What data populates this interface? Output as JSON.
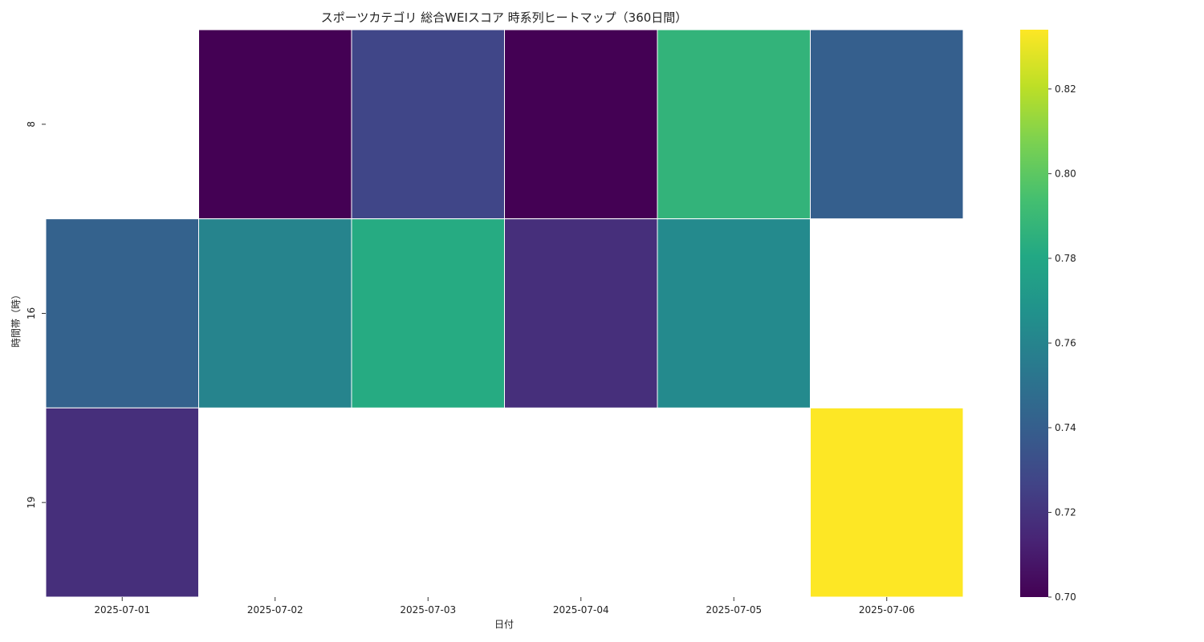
{
  "chart_data": {
    "type": "heatmap",
    "title": "スポーツカテゴリ 総合WEIスコア 時系列ヒートマップ（360日間）",
    "xlabel": "日付",
    "ylabel": "時間帯（時）",
    "x_categories": [
      "2025-07-01",
      "2025-07-02",
      "2025-07-03",
      "2025-07-04",
      "2025-07-05",
      "2025-07-06"
    ],
    "y_categories": [
      "8",
      "16",
      "19"
    ],
    "values": [
      [
        null,
        0.7,
        0.728,
        0.7,
        0.787,
        0.74
      ],
      [
        0.742,
        0.76,
        0.782,
        0.718,
        0.763,
        null
      ],
      [
        0.718,
        null,
        null,
        null,
        null,
        0.834
      ]
    ],
    "colormap": "viridis",
    "colorbar": {
      "range": [
        0.7,
        0.834
      ],
      "ticks": [
        "0.70",
        "0.72",
        "0.74",
        "0.76",
        "0.78",
        "0.80",
        "0.82"
      ]
    },
    "grid_line_color": "#ffffff"
  }
}
